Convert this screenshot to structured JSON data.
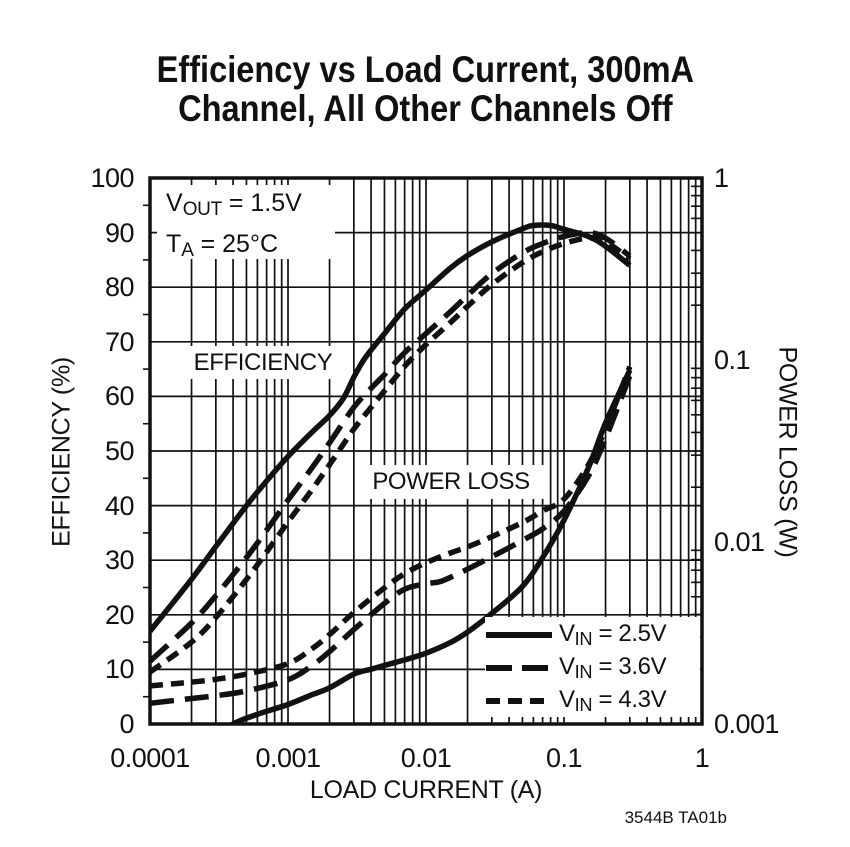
{
  "page": {
    "background": "#ffffff",
    "ink": "#111111"
  },
  "title": {
    "line1": "Efficiency vs Load Current, 300mA",
    "line2": "Channel, All Other Channels Off"
  },
  "footnote": "3544B TA01b",
  "chart_data": {
    "type": "line",
    "title": "Efficiency vs Load Current, 300mA Channel, All Other Channels Off",
    "grid": true,
    "x_axis": {
      "label": "LOAD CURRENT (A)",
      "scale": "log",
      "min": 0.0001,
      "max": 1,
      "ticks": [
        0.0001,
        0.001,
        0.01,
        0.1,
        1
      ],
      "tick_labels": [
        "0.0001",
        "0.001",
        "0.01",
        "0.1",
        "1"
      ]
    },
    "y_left": {
      "label": "EFFICIENCY (%)",
      "min": 0,
      "max": 100,
      "tick_step": 10,
      "tick_labels": [
        "100",
        "90",
        "80",
        "70",
        "60",
        "50",
        "40",
        "30",
        "20",
        "10",
        "0"
      ]
    },
    "y_right": {
      "label": "POWER LOSS (W)",
      "scale": "log",
      "min": 0.001,
      "max": 1,
      "tick_values": [
        1,
        0.1,
        0.01,
        0.001
      ],
      "tick_labels": [
        "1",
        "0.1",
        "0.01",
        "0.001"
      ]
    },
    "annotations": [
      {
        "pre": "V",
        "sub": "OUT",
        "post": " = 1.5V"
      },
      {
        "pre": "T",
        "sub": "A",
        "post": " = 25°C"
      }
    ],
    "curve_labels": {
      "efficiency": "EFFICIENCY",
      "power_loss": "POWER LOSS"
    },
    "legend": {
      "position": "bottom-right",
      "items": [
        {
          "dash": "solid",
          "pre": "V",
          "sub": "IN",
          "post": " = 2.5V"
        },
        {
          "dash": "long",
          "pre": "V",
          "sub": "IN",
          "post": " = 3.6V"
        },
        {
          "dash": "short",
          "pre": "V",
          "sub": "IN",
          "post": " = 4.3V"
        }
      ]
    },
    "series": [
      {
        "name": "efficiency-vin-2.5v",
        "measure": "efficiency",
        "vin": "2.5V",
        "axis": "left",
        "dash": "solid",
        "points": [
          [
            0.0001,
            17
          ],
          [
            0.0002,
            26.5
          ],
          [
            0.0003,
            32.5
          ],
          [
            0.0005,
            40
          ],
          [
            0.0007,
            44.5
          ],
          [
            0.001,
            49
          ],
          [
            0.0015,
            53.5
          ],
          [
            0.002,
            56.5
          ],
          [
            0.0025,
            59.5
          ],
          [
            0.003,
            63.5
          ],
          [
            0.0035,
            66.5
          ],
          [
            0.004,
            68.5
          ],
          [
            0.005,
            71.5
          ],
          [
            0.007,
            76
          ],
          [
            0.01,
            79.5
          ],
          [
            0.015,
            83.5
          ],
          [
            0.02,
            85.8
          ],
          [
            0.03,
            88.3
          ],
          [
            0.05,
            90.7
          ],
          [
            0.06,
            91.3
          ],
          [
            0.08,
            91.3
          ],
          [
            0.1,
            90.6
          ],
          [
            0.15,
            89.3
          ],
          [
            0.2,
            87.5
          ],
          [
            0.3,
            84
          ]
        ]
      },
      {
        "name": "efficiency-vin-3.6v",
        "measure": "efficiency",
        "vin": "3.6V",
        "axis": "left",
        "dash": "long",
        "points": [
          [
            0.0001,
            11.5
          ],
          [
            0.0002,
            18.5
          ],
          [
            0.0003,
            23.5
          ],
          [
            0.0005,
            30.5
          ],
          [
            0.0007,
            35.5
          ],
          [
            0.001,
            41
          ],
          [
            0.0015,
            47
          ],
          [
            0.002,
            51.5
          ],
          [
            0.003,
            58
          ],
          [
            0.004,
            61.5
          ],
          [
            0.005,
            64
          ],
          [
            0.007,
            68
          ],
          [
            0.01,
            71.5
          ],
          [
            0.015,
            75.5
          ],
          [
            0.02,
            78.5
          ],
          [
            0.03,
            82.5
          ],
          [
            0.05,
            86.3
          ],
          [
            0.07,
            88
          ],
          [
            0.1,
            89.3
          ],
          [
            0.15,
            90
          ],
          [
            0.2,
            89
          ],
          [
            0.3,
            85.7
          ]
        ]
      },
      {
        "name": "efficiency-vin-4.3v",
        "measure": "efficiency",
        "vin": "4.3V",
        "axis": "left",
        "dash": "short",
        "points": [
          [
            0.0001,
            9.5
          ],
          [
            0.0002,
            15
          ],
          [
            0.0003,
            19.5
          ],
          [
            0.0005,
            26.5
          ],
          [
            0.0007,
            31.5
          ],
          [
            0.001,
            37
          ],
          [
            0.0015,
            43
          ],
          [
            0.002,
            47.5
          ],
          [
            0.003,
            54
          ],
          [
            0.004,
            58
          ],
          [
            0.005,
            61
          ],
          [
            0.007,
            65.5
          ],
          [
            0.01,
            69.5
          ],
          [
            0.015,
            73.5
          ],
          [
            0.02,
            76.5
          ],
          [
            0.03,
            80.5
          ],
          [
            0.05,
            84.5
          ],
          [
            0.07,
            86.5
          ],
          [
            0.1,
            88
          ],
          [
            0.15,
            89
          ],
          [
            0.2,
            88.3
          ],
          [
            0.3,
            85.2
          ]
        ]
      },
      {
        "name": "power-loss-vin-2.5v",
        "measure": "power_loss",
        "vin": "2.5V",
        "axis": "right",
        "dash": "solid",
        "points": [
          [
            0.00032,
            0.00085
          ],
          [
            0.0004,
            0.001
          ],
          [
            0.0006,
            0.00113
          ],
          [
            0.001,
            0.00128
          ],
          [
            0.0015,
            0.00145
          ],
          [
            0.002,
            0.00158
          ],
          [
            0.003,
            0.00188
          ],
          [
            0.004,
            0.002
          ],
          [
            0.005,
            0.0021
          ],
          [
            0.007,
            0.00225
          ],
          [
            0.01,
            0.00245
          ],
          [
            0.015,
            0.0028
          ],
          [
            0.02,
            0.0032
          ],
          [
            0.03,
            0.00405
          ],
          [
            0.05,
            0.0057
          ],
          [
            0.07,
            0.0082
          ],
          [
            0.1,
            0.0132
          ],
          [
            0.15,
            0.0255
          ],
          [
            0.2,
            0.045
          ],
          [
            0.3,
            0.088
          ]
        ]
      },
      {
        "name": "power-loss-vin-3.6v",
        "measure": "power_loss",
        "vin": "3.6V",
        "axis": "right",
        "dash": "long",
        "points": [
          [
            0.0001,
            0.0013
          ],
          [
            0.0002,
            0.00138
          ],
          [
            0.0003,
            0.00143
          ],
          [
            0.0005,
            0.00152
          ],
          [
            0.001,
            0.00175
          ],
          [
            0.0015,
            0.0021
          ],
          [
            0.002,
            0.0025
          ],
          [
            0.003,
            0.0033
          ],
          [
            0.005,
            0.0046
          ],
          [
            0.007,
            0.0055
          ],
          [
            0.01,
            0.0059
          ],
          [
            0.013,
            0.0061
          ],
          [
            0.02,
            0.0071
          ],
          [
            0.03,
            0.0083
          ],
          [
            0.05,
            0.0102
          ],
          [
            0.07,
            0.0118
          ],
          [
            0.1,
            0.0148
          ],
          [
            0.15,
            0.023
          ],
          [
            0.2,
            0.037
          ],
          [
            0.3,
            0.082
          ]
        ]
      },
      {
        "name": "power-loss-vin-4.3v",
        "measure": "power_loss",
        "vin": "4.3V",
        "axis": "right",
        "dash": "short",
        "points": [
          [
            0.0001,
            0.00162
          ],
          [
            0.0002,
            0.0017
          ],
          [
            0.0003,
            0.00176
          ],
          [
            0.0005,
            0.00188
          ],
          [
            0.001,
            0.00215
          ],
          [
            0.0015,
            0.0026
          ],
          [
            0.002,
            0.0031
          ],
          [
            0.003,
            0.0041
          ],
          [
            0.005,
            0.0056
          ],
          [
            0.007,
            0.0067
          ],
          [
            0.01,
            0.0077
          ],
          [
            0.015,
            0.0087
          ],
          [
            0.02,
            0.0094
          ],
          [
            0.03,
            0.0107
          ],
          [
            0.05,
            0.0128
          ],
          [
            0.07,
            0.0148
          ],
          [
            0.1,
            0.0172
          ],
          [
            0.15,
            0.0265
          ],
          [
            0.2,
            0.042
          ],
          [
            0.3,
            0.092
          ]
        ]
      }
    ]
  }
}
